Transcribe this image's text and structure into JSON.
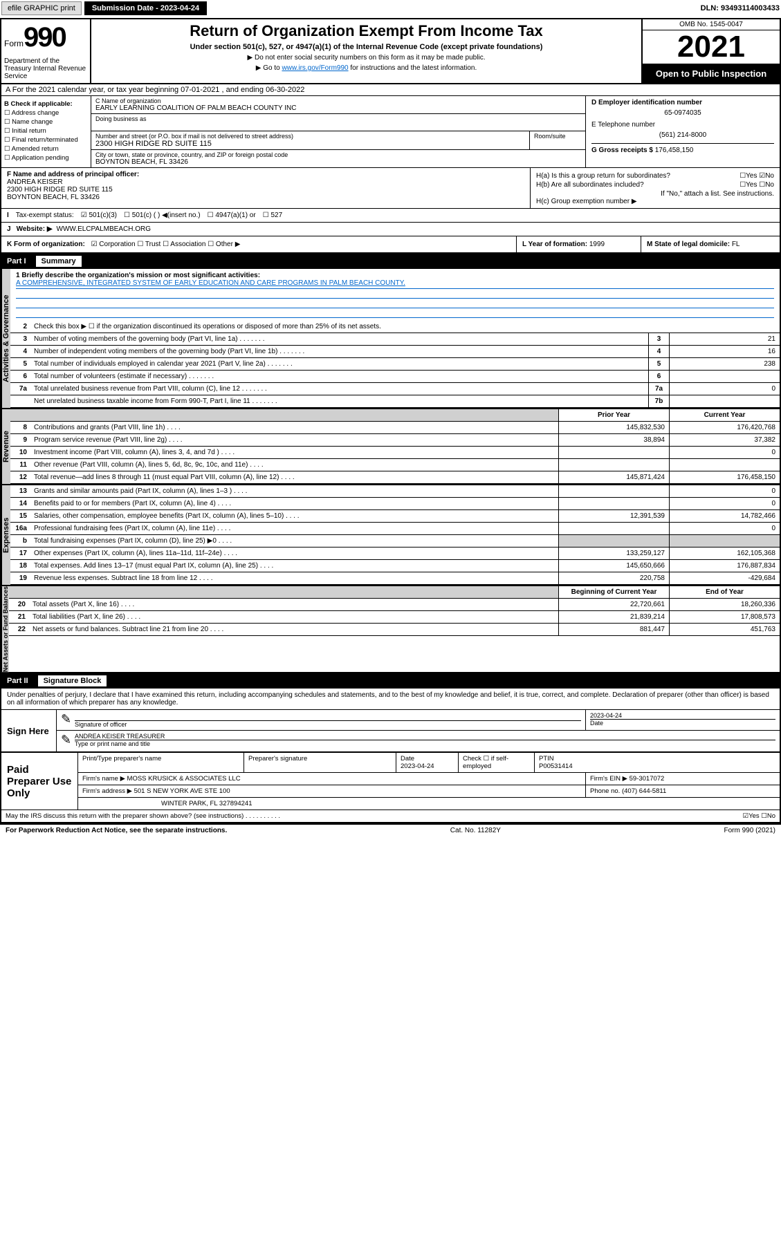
{
  "topbar": {
    "efile": "efile GRAPHIC print",
    "submission_label": "Submission Date - 2023-04-24",
    "dln": "DLN: 93493114003433"
  },
  "header": {
    "form_word": "Form",
    "form_num": "990",
    "dept": "Department of the Treasury Internal Revenue Service",
    "title": "Return of Organization Exempt From Income Tax",
    "sub": "Under section 501(c), 527, or 4947(a)(1) of the Internal Revenue Code (except private foundations)",
    "sub2a": "▶ Do not enter social security numbers on this form as it may be made public.",
    "sub2b_pre": "▶ Go to ",
    "sub2b_link": "www.irs.gov/Form990",
    "sub2b_post": " for instructions and the latest information.",
    "omb": "OMB No. 1545-0047",
    "year": "2021",
    "open": "Open to Public Inspection"
  },
  "rowA": "A For the 2021 calendar year, or tax year beginning 07-01-2021   , and ending 06-30-2022",
  "B": {
    "hdr": "B Check if applicable:",
    "items": [
      "☐ Address change",
      "☐ Name change",
      "☐ Initial return",
      "☐ Final return/terminated",
      "☐ Amended return",
      "☐ Application pending"
    ]
  },
  "C": {
    "name_label": "C Name of organization",
    "name": "EARLY LEARNING COALITION OF PALM BEACH COUNTY INC",
    "dba_label": "Doing business as",
    "street_label": "Number and street (or P.O. box if mail is not delivered to street address)",
    "room_label": "Room/suite",
    "street": "2300 HIGH RIDGE RD SUITE 115",
    "city_label": "City or town, state or province, country, and ZIP or foreign postal code",
    "city": "BOYNTON BEACH, FL  33426"
  },
  "D": {
    "label": "D Employer identification number",
    "val": "65-0974035"
  },
  "E": {
    "label": "E Telephone number",
    "val": "(561) 214-8000"
  },
  "G": {
    "label": "G Gross receipts $",
    "val": "176,458,150"
  },
  "F": {
    "label": "F  Name and address of principal officer:",
    "name": "ANDREA KEISER",
    "street": "2300 HIGH RIDGE RD SUITE 115",
    "city": "BOYNTON BEACH, FL  33426"
  },
  "H": {
    "a": "H(a)  Is this a group return for subordinates?",
    "a_ans": "☐Yes ☑No",
    "b": "H(b)  Are all subordinates included?",
    "b_ans": "☐Yes ☐No",
    "b_note": "If \"No,\" attach a list. See instructions.",
    "c": "H(c)  Group exemption number ▶"
  },
  "I": {
    "label": "Tax-exempt status:",
    "opts": [
      "☑ 501(c)(3)",
      "☐ 501(c) (  ) ◀(insert no.)",
      "☐ 4947(a)(1) or",
      "☐ 527"
    ]
  },
  "J": {
    "label": "Website: ▶",
    "val": "WWW.ELCPALMBEACH.ORG"
  },
  "K": {
    "label": "K Form of organization:",
    "opts": "☑ Corporation ☐ Trust ☐ Association ☐ Other ▶"
  },
  "L": {
    "label": "L Year of formation:",
    "val": "1999"
  },
  "M": {
    "label": "M State of legal domicile:",
    "val": "FL"
  },
  "part1": {
    "num": "Part I",
    "title": "Summary"
  },
  "mission": {
    "q": "1  Briefly describe the organization's mission or most significant activities:",
    "text": "A COMPREHENSIVE, INTEGRATED SYSTEM OF EARLY EDUCATION AND CARE PROGRAMS IN PALM BEACH COUNTY."
  },
  "gov": {
    "side": "Activities & Governance",
    "l2": "Check this box ▶ ☐  if the organization discontinued its operations or disposed of more than 25% of its net assets.",
    "rows": [
      {
        "n": "3",
        "t": "Number of voting members of the governing body (Part VI, line 1a)",
        "b": "3",
        "v": "21"
      },
      {
        "n": "4",
        "t": "Number of independent voting members of the governing body (Part VI, line 1b)",
        "b": "4",
        "v": "16"
      },
      {
        "n": "5",
        "t": "Total number of individuals employed in calendar year 2021 (Part V, line 2a)",
        "b": "5",
        "v": "238"
      },
      {
        "n": "6",
        "t": "Total number of volunteers (estimate if necessary)",
        "b": "6",
        "v": ""
      },
      {
        "n": "7a",
        "t": "Total unrelated business revenue from Part VIII, column (C), line 12",
        "b": "7a",
        "v": "0"
      },
      {
        "n": "",
        "t": "Net unrelated business taxable income from Form 990-T, Part I, line 11",
        "b": "7b",
        "v": ""
      }
    ]
  },
  "twocol": {
    "prior": "Prior Year",
    "current": "Current Year",
    "boy": "Beginning of Current Year",
    "eoy": "End of Year"
  },
  "rev": {
    "side": "Revenue",
    "rows": [
      {
        "n": "8",
        "t": "Contributions and grants (Part VIII, line 1h)",
        "p": "145,832,530",
        "c": "176,420,768"
      },
      {
        "n": "9",
        "t": "Program service revenue (Part VIII, line 2g)",
        "p": "38,894",
        "c": "37,382"
      },
      {
        "n": "10",
        "t": "Investment income (Part VIII, column (A), lines 3, 4, and 7d )",
        "p": "",
        "c": "0"
      },
      {
        "n": "11",
        "t": "Other revenue (Part VIII, column (A), lines 5, 6d, 8c, 9c, 10c, and 11e)",
        "p": "",
        "c": ""
      },
      {
        "n": "12",
        "t": "Total revenue—add lines 8 through 11 (must equal Part VIII, column (A), line 12)",
        "p": "145,871,424",
        "c": "176,458,150"
      }
    ]
  },
  "exp": {
    "side": "Expenses",
    "rows": [
      {
        "n": "13",
        "t": "Grants and similar amounts paid (Part IX, column (A), lines 1–3 )",
        "p": "",
        "c": "0"
      },
      {
        "n": "14",
        "t": "Benefits paid to or for members (Part IX, column (A), line 4)",
        "p": "",
        "c": "0"
      },
      {
        "n": "15",
        "t": "Salaries, other compensation, employee benefits (Part IX, column (A), lines 5–10)",
        "p": "12,391,539",
        "c": "14,782,466"
      },
      {
        "n": "16a",
        "t": "Professional fundraising fees (Part IX, column (A), line 11e)",
        "p": "",
        "c": "0"
      },
      {
        "n": "b",
        "t": "Total fundraising expenses (Part IX, column (D), line 25) ▶0",
        "p": "shade",
        "c": "shade"
      },
      {
        "n": "17",
        "t": "Other expenses (Part IX, column (A), lines 11a–11d, 11f–24e)",
        "p": "133,259,127",
        "c": "162,105,368"
      },
      {
        "n": "18",
        "t": "Total expenses. Add lines 13–17 (must equal Part IX, column (A), line 25)",
        "p": "145,650,666",
        "c": "176,887,834"
      },
      {
        "n": "19",
        "t": "Revenue less expenses. Subtract line 18 from line 12",
        "p": "220,758",
        "c": "-429,684"
      }
    ]
  },
  "net": {
    "side": "Net Assets or Fund Balances",
    "rows": [
      {
        "n": "20",
        "t": "Total assets (Part X, line 16)",
        "p": "22,720,661",
        "c": "18,260,336"
      },
      {
        "n": "21",
        "t": "Total liabilities (Part X, line 26)",
        "p": "21,839,214",
        "c": "17,808,573"
      },
      {
        "n": "22",
        "t": "Net assets or fund balances. Subtract line 21 from line 20",
        "p": "881,447",
        "c": "451,763"
      }
    ]
  },
  "part2": {
    "num": "Part II",
    "title": "Signature Block"
  },
  "perjury": "Under penalties of perjury, I declare that I have examined this return, including accompanying schedules and statements, and to the best of my knowledge and belief, it is true, correct, and complete. Declaration of preparer (other than officer) is based on all information of which preparer has any knowledge.",
  "sign": {
    "here": "Sign Here",
    "sig_label": "Signature of officer",
    "date_label": "Date",
    "date": "2023-04-24",
    "name": "ANDREA KEISER  TREASURER",
    "name_label": "Type or print name and title"
  },
  "prep": {
    "label": "Paid Preparer Use Only",
    "h1": "Print/Type preparer's name",
    "h2": "Preparer's signature",
    "h3": "Date",
    "h3v": "2023-04-24",
    "h4": "Check ☐ if self-employed",
    "h5": "PTIN",
    "h5v": "P00531414",
    "firm_label": "Firm's name    ▶",
    "firm": "MOSS KRUSICK & ASSOCIATES LLC",
    "ein_label": "Firm's EIN ▶",
    "ein": "59-3017072",
    "addr_label": "Firm's address ▶",
    "addr1": "501 S NEW YORK AVE STE 100",
    "addr2": "WINTER PARK, FL  327894241",
    "phone_label": "Phone no.",
    "phone": "(407) 644-5811",
    "discuss": "May the IRS discuss this return with the preparer shown above? (see instructions)",
    "discuss_ans": "☑Yes ☐No"
  },
  "footer": {
    "left": "For Paperwork Reduction Act Notice, see the separate instructions.",
    "mid": "Cat. No. 11282Y",
    "right": "Form 990 (2021)"
  }
}
